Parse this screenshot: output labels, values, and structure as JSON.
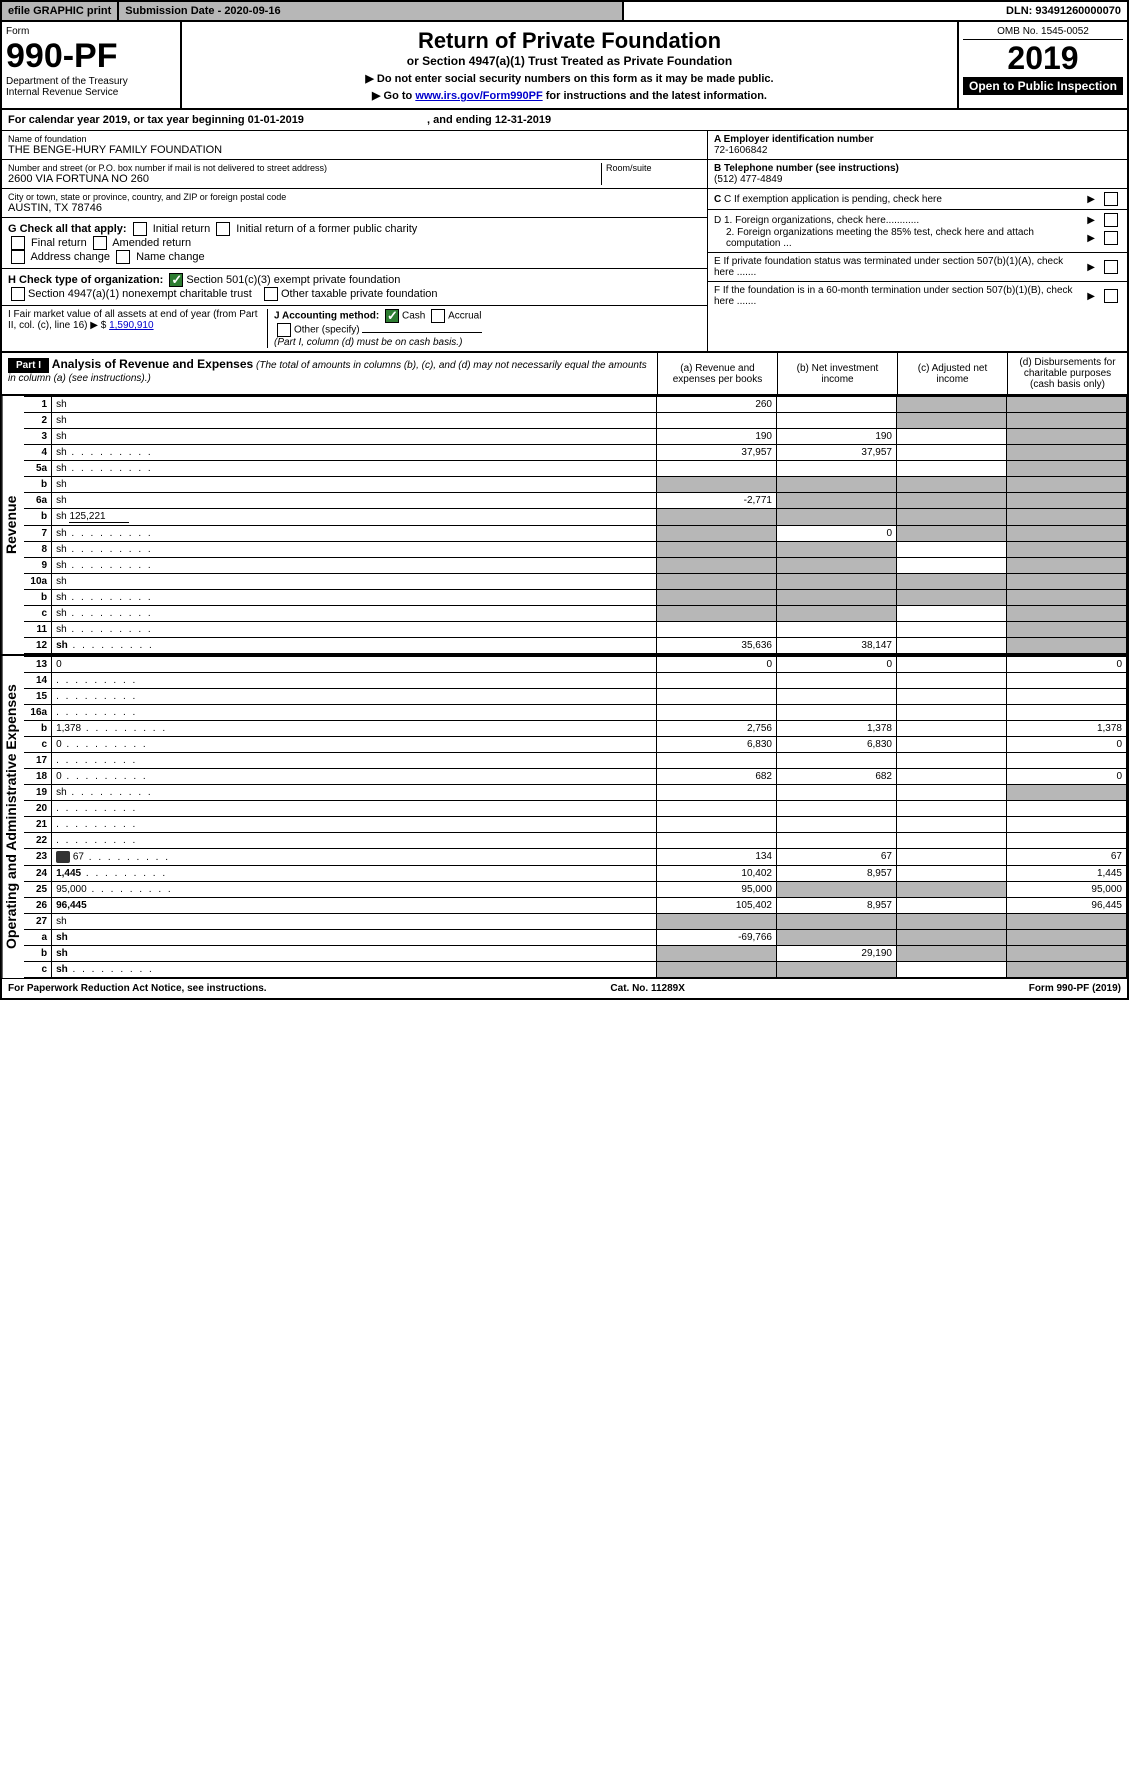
{
  "topbar": {
    "efile": "efile GRAPHIC print",
    "submission": "Submission Date - 2020-09-16",
    "dln": "DLN: 93491260000070"
  },
  "header": {
    "form_label": "Form",
    "form_no": "990-PF",
    "dept": "Department of the Treasury",
    "irs": "Internal Revenue Service",
    "title": "Return of Private Foundation",
    "subtitle": "or Section 4947(a)(1) Trust Treated as Private Foundation",
    "note1": "▶ Do not enter social security numbers on this form as it may be made public.",
    "note2_pre": "▶ Go to ",
    "note2_link": "www.irs.gov/Form990PF",
    "note2_post": " for instructions and the latest information.",
    "omb": "OMB No. 1545-0052",
    "year": "2019",
    "open": "Open to Public Inspection"
  },
  "cal": {
    "text_pre": "For calendar year 2019, or tax year beginning ",
    "begin": "01-01-2019",
    "text_mid": " , and ending ",
    "end": "12-31-2019"
  },
  "org": {
    "name_label": "Name of foundation",
    "name": "THE BENGE-HURY FAMILY FOUNDATION",
    "addr_label": "Number and street (or P.O. box number if mail is not delivered to street address)",
    "addr": "2600 VIA FORTUNA NO 260",
    "room_label": "Room/suite",
    "city_label": "City or town, state or province, country, and ZIP or foreign postal code",
    "city": "AUSTIN, TX  78746",
    "ein_label": "A Employer identification number",
    "ein": "72-1606842",
    "tel_label": "B Telephone number (see instructions)",
    "tel": "(512) 477-4849",
    "c_label": "C If exemption application is pending, check here",
    "d1": "D 1. Foreign organizations, check here............",
    "d2": "2. Foreign organizations meeting the 85% test, check here and attach computation ...",
    "e_label": "E  If private foundation status was terminated under section 507(b)(1)(A), check here .......",
    "f_label": "F  If the foundation is in a 60-month termination under section 507(b)(1)(B), check here ......."
  },
  "g": {
    "label": "G Check all that apply:",
    "opts": [
      "Initial return",
      "Initial return of a former public charity",
      "Final return",
      "Amended return",
      "Address change",
      "Name change"
    ]
  },
  "h": {
    "label": "H Check type of organization:",
    "o1": "Section 501(c)(3) exempt private foundation",
    "o2": "Section 4947(a)(1) nonexempt charitable trust",
    "o3": "Other taxable private foundation"
  },
  "i": {
    "label": "I Fair market value of all assets at end of year (from Part II, col. (c), line 16) ▶ $",
    "val": "1,590,910"
  },
  "j": {
    "label": "J Accounting method:",
    "cash": "Cash",
    "accrual": "Accrual",
    "other": "Other (specify)",
    "note": "(Part I, column (d) must be on cash basis.)"
  },
  "part1": {
    "hdr": "Part I",
    "title": "Analysis of Revenue and Expenses",
    "note": "(The total of amounts in columns (b), (c), and (d) may not necessarily equal the amounts in column (a) (see instructions).)",
    "cols": {
      "a": "(a)   Revenue and expenses per books",
      "b": "(b)  Net investment income",
      "c": "(c)  Adjusted net income",
      "d": "(d)  Disbursements for charitable purposes (cash basis only)"
    }
  },
  "rows": [
    {
      "n": "1",
      "d": "sh",
      "a": "260",
      "b": "",
      "c": "sh"
    },
    {
      "n": "2",
      "d": "sh",
      "a": "",
      "b": "",
      "c": "sh",
      "chk": true
    },
    {
      "n": "3",
      "d": "sh",
      "a": "190",
      "b": "190",
      "c": ""
    },
    {
      "n": "4",
      "d": "sh",
      "a": "37,957",
      "b": "37,957",
      "c": "",
      "dots": true
    },
    {
      "n": "5a",
      "d": "sh",
      "a": "",
      "b": "",
      "c": "",
      "dots": true
    },
    {
      "n": "b",
      "d": "sh",
      "a": "sh",
      "b": "sh",
      "c": "sh"
    },
    {
      "n": "6a",
      "d": "sh",
      "a": "-2,771",
      "b": "sh",
      "c": "sh"
    },
    {
      "n": "b",
      "d": "sh",
      "a": "sh",
      "b": "sh",
      "c": "sh",
      "inline": "125,221"
    },
    {
      "n": "7",
      "d": "sh",
      "a": "sh",
      "b": "0",
      "c": "sh",
      "dots": true
    },
    {
      "n": "8",
      "d": "sh",
      "a": "sh",
      "b": "sh",
      "c": "",
      "dots": true
    },
    {
      "n": "9",
      "d": "sh",
      "a": "sh",
      "b": "sh",
      "c": "",
      "dots": true
    },
    {
      "n": "10a",
      "d": "sh",
      "a": "sh",
      "b": "sh",
      "c": "sh"
    },
    {
      "n": "b",
      "d": "sh",
      "a": "sh",
      "b": "sh",
      "c": "sh",
      "dots": true
    },
    {
      "n": "c",
      "d": "sh",
      "a": "sh",
      "b": "sh",
      "c": "",
      "dots": true
    },
    {
      "n": "11",
      "d": "sh",
      "a": "",
      "b": "",
      "c": "",
      "dots": true
    },
    {
      "n": "12",
      "d": "sh",
      "a": "35,636",
      "b": "38,147",
      "c": "",
      "dots": true,
      "bold": true
    }
  ],
  "rows2": [
    {
      "n": "13",
      "d": "0",
      "a": "0",
      "b": "0",
      "c": ""
    },
    {
      "n": "14",
      "d": "",
      "a": "",
      "b": "",
      "c": "",
      "dots": true
    },
    {
      "n": "15",
      "d": "",
      "a": "",
      "b": "",
      "c": "",
      "dots": true
    },
    {
      "n": "16a",
      "d": "",
      "a": "",
      "b": "",
      "c": "",
      "dots": true
    },
    {
      "n": "b",
      "d": "1,378",
      "a": "2,756",
      "b": "1,378",
      "c": "",
      "dots": true
    },
    {
      "n": "c",
      "d": "0",
      "a": "6,830",
      "b": "6,830",
      "c": "",
      "dots": true
    },
    {
      "n": "17",
      "d": "",
      "a": "",
      "b": "",
      "c": "",
      "dots": true
    },
    {
      "n": "18",
      "d": "0",
      "a": "682",
      "b": "682",
      "c": "",
      "dots": true
    },
    {
      "n": "19",
      "d": "sh",
      "a": "",
      "b": "",
      "c": "",
      "dots": true
    },
    {
      "n": "20",
      "d": "",
      "a": "",
      "b": "",
      "c": "",
      "dots": true
    },
    {
      "n": "21",
      "d": "",
      "a": "",
      "b": "",
      "c": "",
      "dots": true
    },
    {
      "n": "22",
      "d": "",
      "a": "",
      "b": "",
      "c": "",
      "dots": true
    },
    {
      "n": "23",
      "d": "67",
      "a": "134",
      "b": "67",
      "c": "",
      "dots": true,
      "att": true
    },
    {
      "n": "24",
      "d": "1,445",
      "a": "10,402",
      "b": "8,957",
      "c": "",
      "dots": true,
      "bold": true
    },
    {
      "n": "25",
      "d": "95,000",
      "a": "95,000",
      "b": "sh",
      "c": "sh",
      "dots": true
    },
    {
      "n": "26",
      "d": "96,445",
      "a": "105,402",
      "b": "8,957",
      "c": "",
      "bold": true
    },
    {
      "n": "27",
      "d": "sh",
      "a": "sh",
      "b": "sh",
      "c": "sh"
    },
    {
      "n": "a",
      "d": "sh",
      "a": "-69,766",
      "b": "sh",
      "c": "sh",
      "bold": true
    },
    {
      "n": "b",
      "d": "sh",
      "a": "sh",
      "b": "29,190",
      "c": "sh",
      "bold": true
    },
    {
      "n": "c",
      "d": "sh",
      "a": "sh",
      "b": "sh",
      "c": "",
      "bold": true,
      "dots": true
    }
  ],
  "vtabs": {
    "rev": "Revenue",
    "exp": "Operating and Administrative Expenses"
  },
  "footer": {
    "left": "For Paperwork Reduction Act Notice, see instructions.",
    "mid": "Cat. No. 11289X",
    "right": "Form 990-PF (2019)"
  }
}
